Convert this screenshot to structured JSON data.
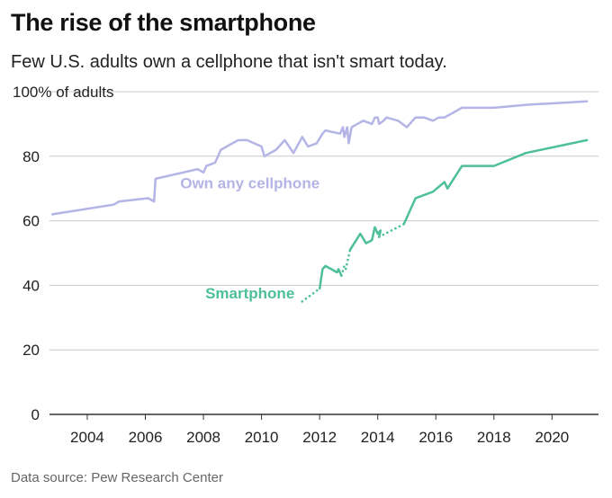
{
  "header": {
    "title": "The rise of the smartphone",
    "subtitle": "Few U.S. adults own a cellphone that isn't smart today."
  },
  "footer": {
    "source": "Data source: Pew Research Center"
  },
  "chart_data": {
    "type": "line",
    "title": "The rise of the smartphone",
    "subtitle": "Few U.S. adults own a cellphone that isn't smart today.",
    "ylabel": "% of adults",
    "xlim": [
      2002.7,
      2021.6
    ],
    "ylim": [
      0,
      100
    ],
    "x_ticks": [
      2004,
      2006,
      2008,
      2010,
      2012,
      2014,
      2016,
      2018,
      2020
    ],
    "y_ticks": [
      0,
      20,
      40,
      60,
      80,
      100
    ],
    "y_tick_labels": [
      "0",
      "20",
      "40",
      "60",
      "80",
      "100% of adults"
    ],
    "grid": "horizontal",
    "series": [
      {
        "name": "Own any cellphone",
        "color": "#b4b4e6",
        "points": [
          [
            2002.8,
            62
          ],
          [
            2004.9,
            65
          ],
          [
            2005.1,
            66
          ],
          [
            2006.1,
            67
          ],
          [
            2006.3,
            66
          ],
          [
            2006.35,
            73
          ],
          [
            2007.8,
            76
          ],
          [
            2008.0,
            75
          ],
          [
            2008.1,
            77
          ],
          [
            2008.4,
            78
          ],
          [
            2008.6,
            82
          ],
          [
            2009.2,
            85
          ],
          [
            2009.5,
            85
          ],
          [
            2010.0,
            83
          ],
          [
            2010.1,
            80
          ],
          [
            2010.5,
            82
          ],
          [
            2010.8,
            85
          ],
          [
            2011.1,
            81
          ],
          [
            2011.4,
            86
          ],
          [
            2011.6,
            83
          ],
          [
            2011.9,
            84
          ],
          [
            2012.1,
            87
          ],
          [
            2012.2,
            88
          ],
          [
            2012.7,
            87
          ],
          [
            2012.8,
            89
          ],
          [
            2012.85,
            86
          ],
          [
            2012.95,
            89
          ],
          [
            2013.0,
            84
          ],
          [
            2013.1,
            89
          ],
          [
            2013.5,
            91
          ],
          [
            2013.8,
            90
          ],
          [
            2013.9,
            92
          ],
          [
            2014.0,
            92
          ],
          [
            2014.05,
            90
          ],
          [
            2014.2,
            91
          ],
          [
            2014.3,
            92
          ],
          [
            2014.7,
            91
          ],
          [
            2015.0,
            89
          ],
          [
            2015.3,
            92
          ],
          [
            2015.6,
            92
          ],
          [
            2015.9,
            91
          ],
          [
            2016.1,
            92
          ],
          [
            2016.3,
            92
          ],
          [
            2016.9,
            95
          ],
          [
            2018.0,
            95
          ],
          [
            2019.2,
            96
          ],
          [
            2021.2,
            97
          ]
        ]
      },
      {
        "name": "Smartphone",
        "color": "#4dbf9a",
        "segments": [
          {
            "style": "dotted",
            "points": [
              [
                2011.4,
                35
              ],
              [
                2012.0,
                39
              ]
            ]
          },
          {
            "style": "solid",
            "points": [
              [
                2012.0,
                39
              ],
              [
                2012.1,
                45
              ],
              [
                2012.2,
                46
              ],
              [
                2012.4,
                45
              ],
              [
                2012.6,
                44
              ],
              [
                2012.65,
                45
              ],
              [
                2012.75,
                43
              ]
            ]
          },
          {
            "style": "dotted",
            "points": [
              [
                2012.75,
                43
              ],
              [
                2012.85,
                46
              ],
              [
                2012.9,
                45
              ],
              [
                2013.05,
                51
              ]
            ]
          },
          {
            "style": "solid",
            "points": [
              [
                2013.05,
                51
              ],
              [
                2013.4,
                56
              ],
              [
                2013.6,
                53
              ],
              [
                2013.8,
                54
              ],
              [
                2013.9,
                58
              ],
              [
                2014.0,
                56
              ],
              [
                2014.1,
                57
              ],
              [
                2014.05,
                55
              ]
            ]
          },
          {
            "style": "dotted",
            "points": [
              [
                2014.05,
                55
              ],
              [
                2014.9,
                59
              ]
            ]
          },
          {
            "style": "solid",
            "points": [
              [
                2014.9,
                59
              ],
              [
                2015.3,
                67
              ],
              [
                2015.9,
                69
              ],
              [
                2016.3,
                72
              ],
              [
                2016.4,
                70
              ],
              [
                2016.9,
                77
              ],
              [
                2018.0,
                77
              ],
              [
                2019.1,
                81
              ],
              [
                2021.2,
                85
              ]
            ]
          }
        ]
      }
    ],
    "annotations": [
      {
        "text": "Own any cellphone",
        "x": 2009.6,
        "y": 70,
        "series": "Own any cellphone"
      },
      {
        "text": "Smartphone",
        "x": 2009.6,
        "y": 36,
        "series": "Smartphone"
      }
    ]
  }
}
